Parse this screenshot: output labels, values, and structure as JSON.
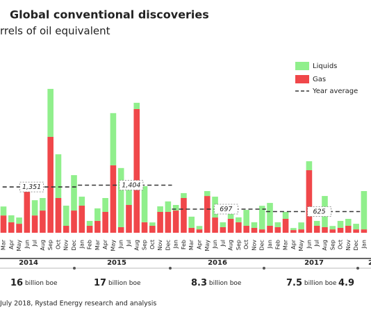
{
  "chart_data": {
    "type": "bar",
    "stacked": true,
    "title": "Global conventional discoveries",
    "subtitle": "rrels of oil equivalent",
    "categories": [
      "Mar",
      "Apr",
      "May",
      "Jun",
      "Jul",
      "Aug",
      "Sep",
      "Oct",
      "Nov",
      "Dec",
      "Jan",
      "Feb",
      "Mar",
      "Apr",
      "May",
      "Jun",
      "Jul",
      "Aug",
      "Sep",
      "Oct",
      "Nov",
      "Dec",
      "Jan",
      "Feb",
      "Mar",
      "Apr",
      "May",
      "Jun",
      "Jul",
      "Aug",
      "Sep",
      "Oct",
      "Nov",
      "Dec",
      "Jan",
      "Feb",
      "Mar",
      "Apr",
      "May",
      "Jun",
      "Jul",
      "Aug",
      "Sep",
      "Oct",
      "Nov",
      "Dec",
      "Jan"
    ],
    "series": [
      {
        "name": "Gas",
        "color": "#f0474a",
        "values": [
          510,
          310,
          265,
          1230,
          510,
          655,
          2830,
          1025,
          205,
          655,
          800,
          205,
          350,
          615,
          1990,
          165,
          820,
          3650,
          310,
          205,
          615,
          615,
          655,
          1025,
          145,
          100,
          1085,
          450,
          165,
          410,
          310,
          205,
          145,
          100,
          205,
          165,
          410,
          80,
          100,
          1845,
          205,
          165,
          100,
          145,
          205,
          100,
          100
        ]
      },
      {
        "name": "Liquids",
        "color": "#90ef8c",
        "values": [
          265,
          205,
          185,
          60,
          450,
          370,
          1415,
          1290,
          595,
          1045,
          265,
          145,
          370,
          410,
          1540,
          1745,
          675,
          185,
          1065,
          100,
          165,
          310,
          165,
          145,
          330,
          100,
          145,
          615,
          145,
          205,
          145,
          470,
          165,
          695,
          675,
          145,
          205,
          60,
          205,
          265,
          145,
          920,
          100,
          205,
          205,
          165,
          1130
        ]
      }
    ],
    "year_average": {
      "name": "Year average",
      "values": [
        {
          "value": 1351,
          "label": "1,351"
        },
        {
          "value": 1404,
          "label": "1,404"
        },
        {
          "value": 697,
          "label": "697"
        },
        {
          "value": 625,
          "label": "625"
        }
      ]
    },
    "years": [
      "2014",
      "2015",
      "2016",
      "2017",
      "2"
    ],
    "year_totals": [
      {
        "value": "16",
        "unit": "billion boe"
      },
      {
        "value": "17",
        "unit": "billion boe"
      },
      {
        "value": "8.3",
        "unit": "billion boe"
      },
      {
        "value": "7.5",
        "unit": "billion boe"
      },
      {
        "value": "4.9"
      }
    ],
    "source": "July 2018, Rystad Energy research and analysis"
  }
}
